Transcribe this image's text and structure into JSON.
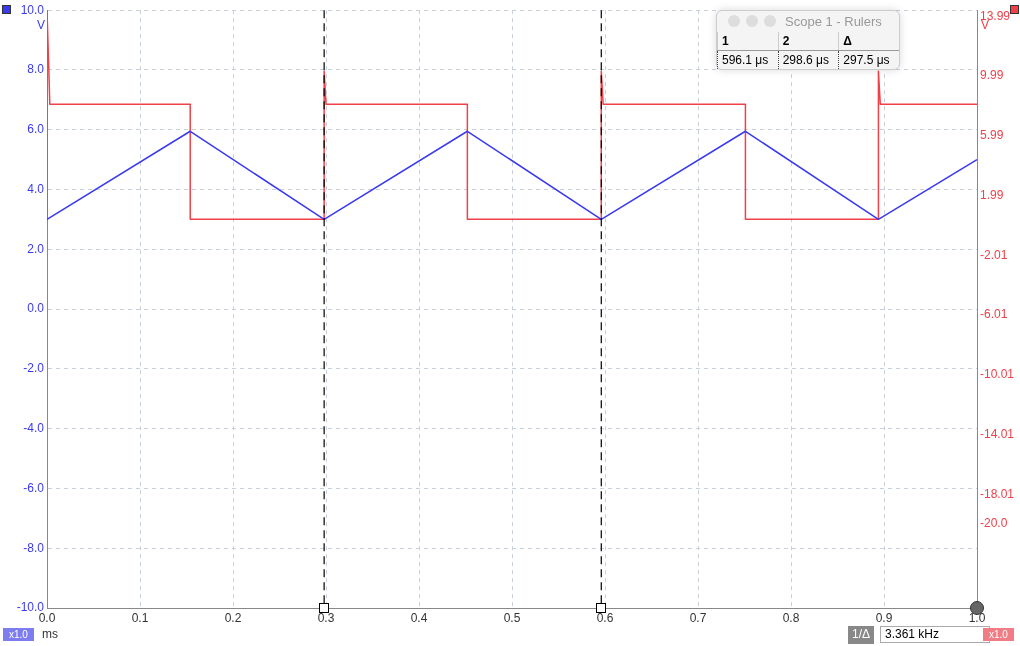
{
  "chart_data": {
    "type": "line",
    "xlabel": "ms",
    "ylabel": "V",
    "y2label": "V",
    "xlim": [
      0,
      1
    ],
    "xticks": [
      {
        "value": 0,
        "label": "0.0"
      },
      {
        "value": 0.1,
        "label": "0.1"
      },
      {
        "value": 0.2,
        "label": "0.2"
      },
      {
        "value": 0.3,
        "label": "0.3"
      },
      {
        "value": 0.4,
        "label": "0.4"
      },
      {
        "value": 0.5,
        "label": "0.5"
      },
      {
        "value": 0.6,
        "label": "0.6"
      },
      {
        "value": 0.7,
        "label": "0.7"
      },
      {
        "value": 0.8,
        "label": "0.8"
      },
      {
        "value": 0.9,
        "label": "0.9"
      },
      {
        "value": 1,
        "label": "1.0"
      }
    ],
    "ylim": [
      -10,
      10
    ],
    "yticks": [
      {
        "value": -10,
        "label": "-10.0"
      },
      {
        "value": -8,
        "label": "-8.0"
      },
      {
        "value": -6,
        "label": "-6.0"
      },
      {
        "value": -4,
        "label": "-4.0"
      },
      {
        "value": -2,
        "label": "-2.0"
      },
      {
        "value": 0,
        "label": "0.0"
      },
      {
        "value": 2,
        "label": "2.0"
      },
      {
        "value": 4,
        "label": "4.0"
      },
      {
        "value": 6,
        "label": "6.0"
      },
      {
        "value": 8,
        "label": "8.0"
      },
      {
        "value": 10,
        "label": "10.0"
      }
    ],
    "y2lim": [
      -26.01,
      13.99
    ],
    "y2ticks": [
      {
        "value": -20,
        "label": "-20.0"
      },
      -18.01,
      -14.01,
      -10.01,
      -6.01,
      -2.01,
      1.99,
      5.99,
      9.99,
      13.99
    ],
    "grid": true,
    "legend": false,
    "marker": "none",
    "line_style": "solid",
    "series": [
      {
        "color": "#3a3af0",
        "x": [
          0,
          0.154,
          0.298,
          0.452,
          0.596,
          0.751,
          0.894,
          1
        ],
        "values": [
          3.0,
          5.95,
          3.0,
          5.95,
          3.0,
          5.95,
          3.0,
          5.0
        ]
      },
      {
        "color": "#f0404a",
        "axis": "y2",
        "x": [
          0,
          0,
          0.002,
          0.003,
          0.154,
          0.154,
          0.298,
          0.298,
          0.3,
          0.452,
          0.452,
          0.596,
          0.596,
          0.598,
          0.751,
          0.751,
          0.894,
          0.894,
          0.896,
          1
        ],
        "values": [
          0,
          13.99,
          9.9,
          7.7,
          7.7,
          0,
          0,
          9.9,
          7.7,
          7.7,
          0,
          0,
          9.9,
          7.7,
          7.7,
          0,
          0,
          9.9,
          7.7,
          7.7
        ]
      }
    ],
    "ref_lines": [
      {
        "axis": "x",
        "value": 0.298,
        "color": "#000000",
        "line_style": "dashed"
      },
      {
        "axis": "x",
        "value": 0.596,
        "color": "#000000",
        "line_style": "dashed"
      }
    ],
    "annotations": [
      "Scope 1 - Rulers",
      "1",
      "2",
      "Δ",
      "596.1 μs",
      "298.6 μs",
      "297.5 μs",
      "x1.0",
      "1/Δ",
      "3.361 kHz",
      "x1.0"
    ]
  }
}
